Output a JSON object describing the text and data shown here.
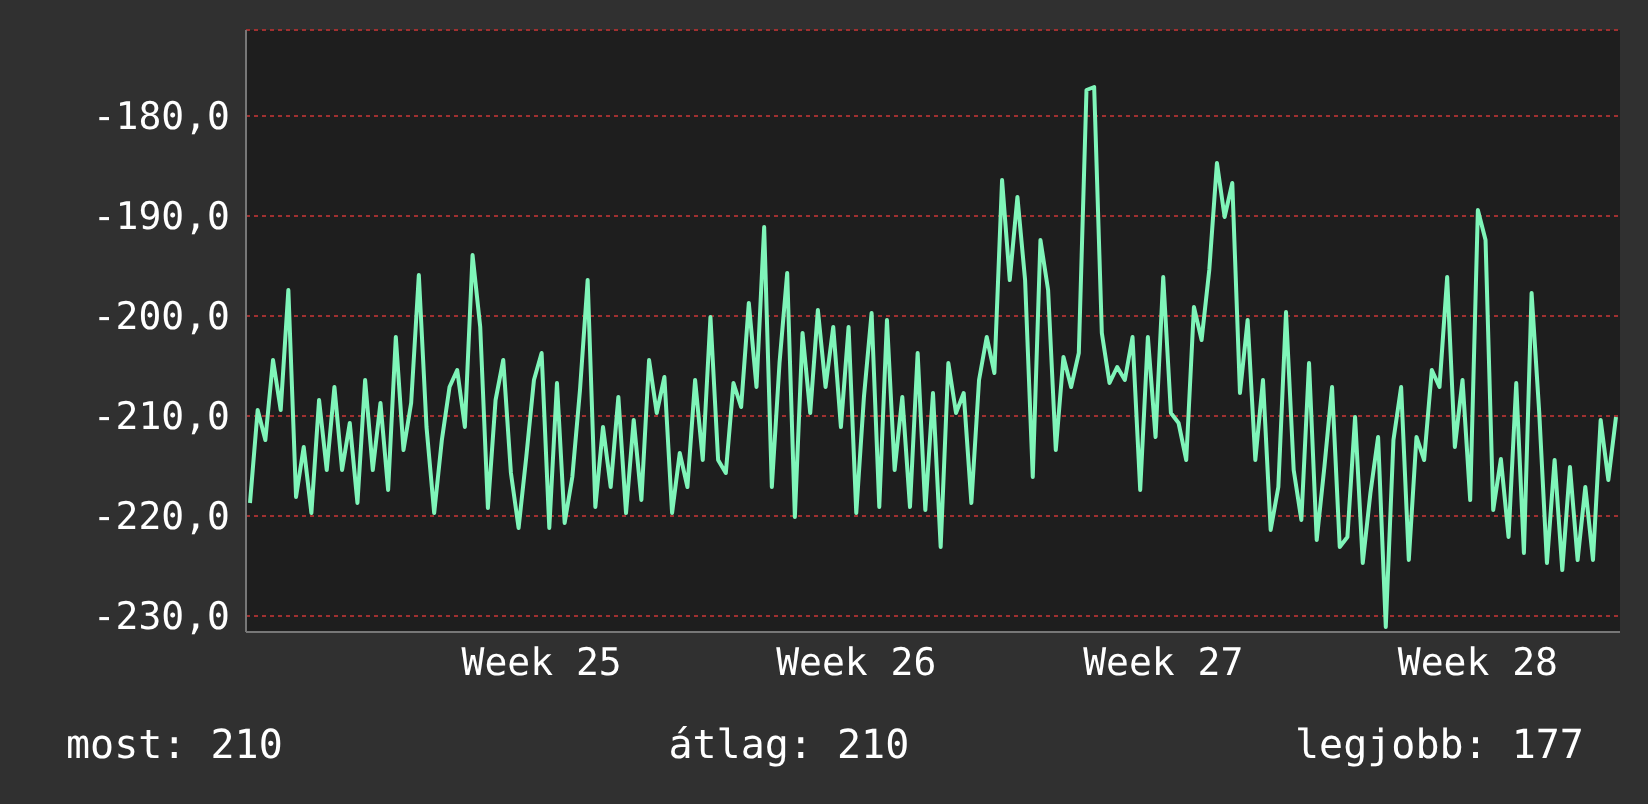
{
  "chart_data": {
    "type": "line",
    "categories": [
      null,
      null,
      null,
      null,
      null,
      null,
      null,
      null,
      null,
      null,
      null,
      null,
      null,
      null,
      null,
      null,
      null,
      null,
      null,
      null,
      null,
      null,
      null,
      null,
      null,
      null,
      null,
      null,
      null,
      null,
      null,
      null,
      null,
      null,
      null,
      null,
      null,
      null,
      "Week 25",
      null,
      null,
      null,
      null,
      null,
      null,
      null,
      null,
      null,
      null,
      null,
      null,
      null,
      null,
      null,
      null,
      null,
      null,
      null,
      null,
      null,
      null,
      null,
      null,
      null,
      null,
      null,
      null,
      null,
      null,
      null,
      null,
      null,
      null,
      null,
      null,
      null,
      null,
      null,
      null,
      "Week 26",
      null,
      null,
      null,
      null,
      null,
      null,
      null,
      null,
      null,
      null,
      null,
      null,
      null,
      null,
      null,
      null,
      null,
      null,
      null,
      null,
      null,
      null,
      null,
      null,
      null,
      null,
      null,
      null,
      null,
      null,
      null,
      null,
      null,
      null,
      null,
      null,
      null,
      null,
      null,
      "Week 27",
      null,
      null,
      null,
      null,
      null,
      null,
      null,
      null,
      null,
      null,
      null,
      null,
      null,
      null,
      null,
      null,
      null,
      null,
      null,
      null,
      null,
      null,
      null,
      null,
      null,
      null,
      null,
      null,
      null,
      null,
      null,
      null,
      null,
      null,
      null,
      null,
      null,
      null,
      null,
      null,
      "Week 28",
      null,
      null,
      null,
      null,
      null,
      null,
      null,
      null,
      null,
      null,
      null,
      null,
      null,
      null,
      null,
      null,
      null,
      null
    ],
    "values": [
      -218.7,
      -209.4,
      -212.4,
      -204.4,
      -209.4,
      -197.4,
      -218.1,
      -213.1,
      -219.7,
      -208.4,
      -215.4,
      -207.1,
      -215.4,
      -210.7,
      -218.7,
      -206.4,
      -215.4,
      -208.7,
      -217.4,
      -202.1,
      -213.4,
      -208.7,
      -195.9,
      -211.1,
      -219.7,
      -212.4,
      -207.1,
      -205.4,
      -211.1,
      -193.9,
      -201.1,
      -219.2,
      -208.4,
      -204.4,
      -215.7,
      -221.2,
      -214.1,
      -206.4,
      -203.7,
      -221.2,
      -206.7,
      -220.7,
      -216.1,
      -207.4,
      -196.4,
      -219.1,
      -211.1,
      -217.1,
      -208.1,
      -219.7,
      -210.4,
      -218.4,
      -204.4,
      -209.7,
      -206.1,
      -219.7,
      -213.7,
      -217.1,
      -206.4,
      -214.4,
      -200.1,
      -214.4,
      -215.7,
      -206.7,
      -209.1,
      -198.7,
      -207.1,
      -191.1,
      -217.1,
      -204.7,
      -195.7,
      -220.1,
      -201.7,
      -209.7,
      -199.4,
      -207.1,
      -201.1,
      -211.1,
      -201.1,
      -219.7,
      -208.1,
      -199.7,
      -219.1,
      -200.4,
      -215.4,
      -208.1,
      -219.1,
      -203.7,
      -219.4,
      -207.7,
      -223.1,
      -204.7,
      -209.7,
      -207.7,
      -218.7,
      -206.4,
      -202.1,
      -205.7,
      -186.4,
      -196.4,
      -188.1,
      -196.4,
      -216.1,
      -192.4,
      -197.4,
      -213.4,
      -204.1,
      -207.1,
      -203.7,
      -177.4,
      -177.1,
      -201.7,
      -206.7,
      -205.1,
      -206.4,
      -202.1,
      -217.4,
      -202.1,
      -212.1,
      -196.1,
      -209.7,
      -210.7,
      -214.4,
      -199.1,
      -202.4,
      -195.4,
      -184.7,
      -190.1,
      -186.7,
      -207.7,
      -200.4,
      -214.4,
      -206.4,
      -221.4,
      -217.1,
      -199.6,
      -215.4,
      -220.4,
      -204.7,
      -222.4,
      -215.1,
      -207.1,
      -223.1,
      -222.1,
      -210.1,
      -224.7,
      -217.7,
      -212.1,
      -231.1,
      -212.4,
      -207.1,
      -224.4,
      -212.1,
      -214.4,
      -205.4,
      -207.1,
      -196.1,
      -213.1,
      -206.4,
      -218.4,
      -189.4,
      -192.4,
      -219.4,
      -214.3,
      -222.1,
      -206.7,
      -223.7,
      -197.7,
      -209.7,
      -224.7,
      -214.4,
      -225.4,
      -215.1,
      -224.4,
      -217.1,
      -224.4,
      -210.4,
      -216.4,
      -210.1
    ],
    "color": "#7ff5b9",
    "ylim": [
      -231.6,
      -171.4
    ],
    "yticks": [
      {
        "value": -230,
        "label": "-230,0"
      },
      {
        "value": -220,
        "label": "-220,0"
      },
      {
        "value": -210,
        "label": "-210,0"
      },
      {
        "value": -200,
        "label": "-200,0"
      },
      {
        "value": -190,
        "label": "-190,0"
      },
      {
        "value": -180,
        "label": "-180,0"
      }
    ],
    "grid": "y",
    "annotations": [
      "most: 210",
      "átlag: 210",
      "legjobb: 177"
    ]
  }
}
